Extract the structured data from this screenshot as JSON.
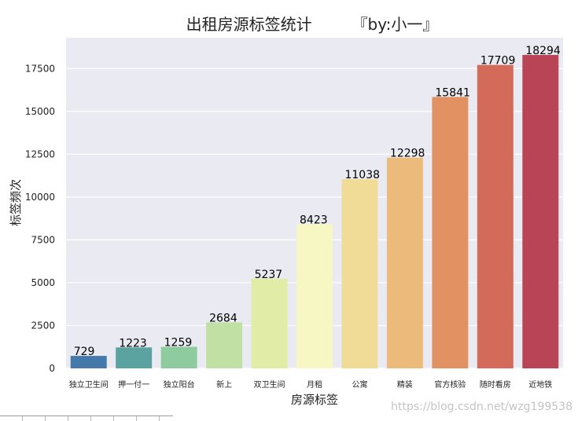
{
  "chart_data": {
    "type": "bar",
    "title": "出租房源标签统计        『by:小一』",
    "xlabel": "房源标签",
    "ylabel": "标签频次",
    "categories": [
      "独立卫生间",
      "押一付一",
      "独立阳台",
      "新上",
      "双卫生间",
      "月租",
      "公寓",
      "精装",
      "官方核验",
      "随时看房",
      "近地铁"
    ],
    "values": [
      729,
      1223,
      1259,
      2684,
      5237,
      8423,
      11038,
      12298,
      15841,
      17709,
      18294
    ],
    "ylim": [
      0,
      19300
    ],
    "yticks": [
      0,
      2500,
      5000,
      7500,
      10000,
      12500,
      15000,
      17500
    ],
    "grid": true,
    "legend": "none",
    "bar_colors": [
      "#4479a9",
      "#5aa3a0",
      "#8ecb9e",
      "#c0e0a4",
      "#e1eda7",
      "#f7f7c4",
      "#f1dc97",
      "#ecbb7b",
      "#e29163",
      "#d46a5a",
      "#b94455"
    ],
    "plot_background": "#eaeaf2"
  },
  "watermark": "https://blog.csdn.net/wzg199538"
}
